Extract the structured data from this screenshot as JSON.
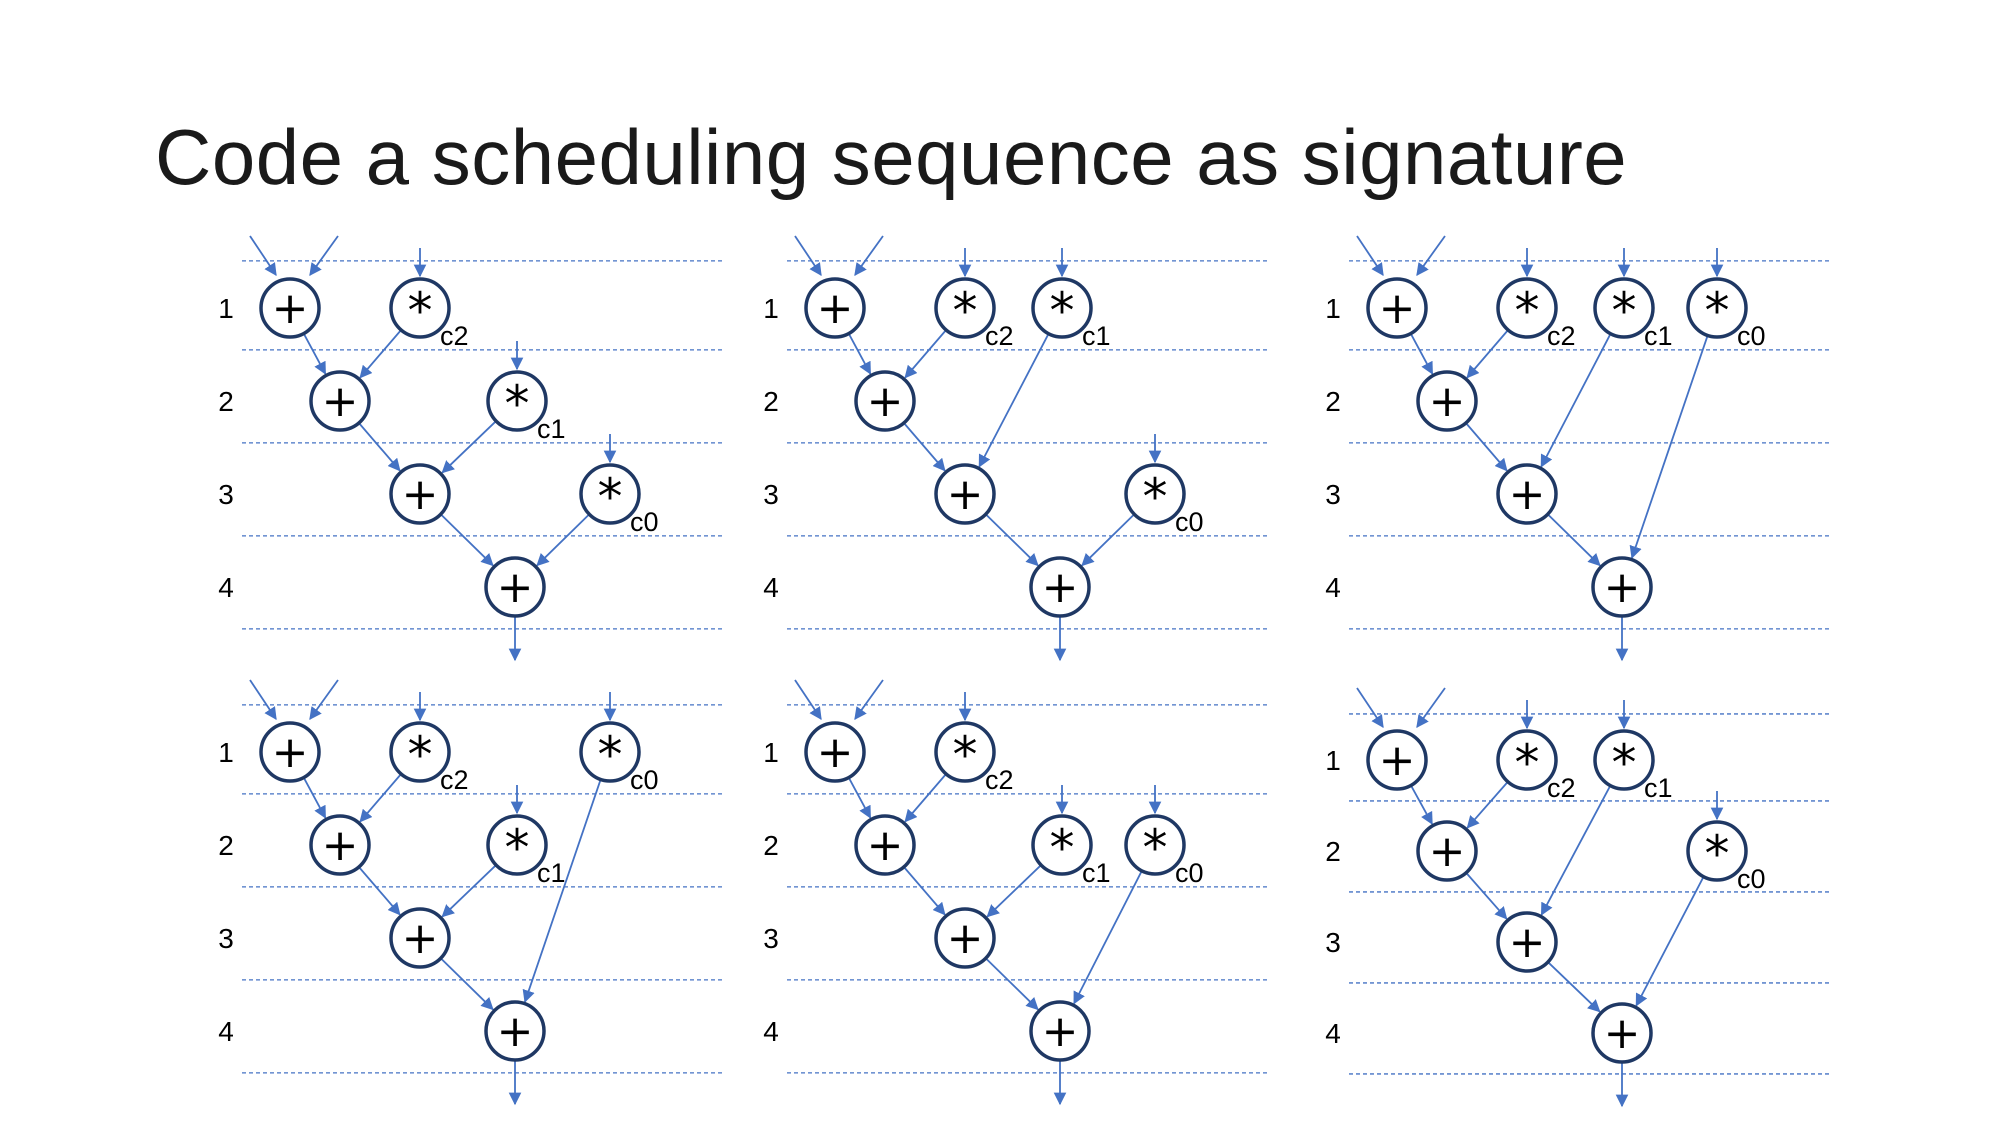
{
  "title": "Code a scheduling sequence as signature",
  "colors": {
    "edge": "#4472C4",
    "node_border": "#1F3864",
    "guide": "#4472C4"
  },
  "step_labels": [
    "1",
    "2",
    "3",
    "4"
  ],
  "operators": {
    "add": "+",
    "mult": "*"
  },
  "schedules": [
    {
      "id": "schedule-1",
      "nodes": [
        {
          "id": "a1",
          "op": "add",
          "step": 1,
          "ext_inputs": 2
        },
        {
          "id": "m2",
          "op": "mult",
          "step": 1,
          "coef": "c2",
          "ext_inputs": 1
        },
        {
          "id": "a2",
          "op": "add",
          "step": 2
        },
        {
          "id": "m1",
          "op": "mult",
          "step": 2,
          "coef": "c1",
          "ext_inputs": 1
        },
        {
          "id": "a3",
          "op": "add",
          "step": 3
        },
        {
          "id": "m0",
          "op": "mult",
          "step": 3,
          "coef": "c0",
          "ext_inputs": 1
        },
        {
          "id": "a4",
          "op": "add",
          "step": 4,
          "output": true
        }
      ],
      "edges": [
        [
          "a1",
          "a2"
        ],
        [
          "m2",
          "a2"
        ],
        [
          "a2",
          "a3"
        ],
        [
          "m1",
          "a3"
        ],
        [
          "a3",
          "a4"
        ],
        [
          "m0",
          "a4"
        ]
      ]
    },
    {
      "id": "schedule-2",
      "nodes": [
        {
          "id": "a1",
          "op": "add",
          "step": 1,
          "ext_inputs": 2
        },
        {
          "id": "m2",
          "op": "mult",
          "step": 1,
          "coef": "c2",
          "ext_inputs": 1
        },
        {
          "id": "m1",
          "op": "mult",
          "step": 1,
          "coef": "c1",
          "ext_inputs": 1
        },
        {
          "id": "a2",
          "op": "add",
          "step": 2
        },
        {
          "id": "a3",
          "op": "add",
          "step": 3
        },
        {
          "id": "m0",
          "op": "mult",
          "step": 3,
          "coef": "c0",
          "ext_inputs": 1
        },
        {
          "id": "a4",
          "op": "add",
          "step": 4,
          "output": true
        }
      ],
      "edges": [
        [
          "a1",
          "a2"
        ],
        [
          "m2",
          "a2"
        ],
        [
          "a2",
          "a3"
        ],
        [
          "m1",
          "a3"
        ],
        [
          "a3",
          "a4"
        ],
        [
          "m0",
          "a4"
        ]
      ]
    },
    {
      "id": "schedule-3",
      "nodes": [
        {
          "id": "a1",
          "op": "add",
          "step": 1,
          "ext_inputs": 2
        },
        {
          "id": "m2",
          "op": "mult",
          "step": 1,
          "coef": "c2",
          "ext_inputs": 1
        },
        {
          "id": "m1",
          "op": "mult",
          "step": 1,
          "coef": "c1",
          "ext_inputs": 1
        },
        {
          "id": "m0",
          "op": "mult",
          "step": 1,
          "coef": "c0",
          "ext_inputs": 1
        },
        {
          "id": "a2",
          "op": "add",
          "step": 2
        },
        {
          "id": "a3",
          "op": "add",
          "step": 3
        },
        {
          "id": "a4",
          "op": "add",
          "step": 4,
          "output": true
        }
      ],
      "edges": [
        [
          "a1",
          "a2"
        ],
        [
          "m2",
          "a2"
        ],
        [
          "a2",
          "a3"
        ],
        [
          "m1",
          "a3"
        ],
        [
          "a3",
          "a4"
        ],
        [
          "m0",
          "a4"
        ]
      ]
    },
    {
      "id": "schedule-4",
      "nodes": [
        {
          "id": "a1",
          "op": "add",
          "step": 1,
          "ext_inputs": 2
        },
        {
          "id": "m2",
          "op": "mult",
          "step": 1,
          "coef": "c2",
          "ext_inputs": 1
        },
        {
          "id": "m0",
          "op": "mult",
          "step": 1,
          "coef": "c0",
          "ext_inputs": 1
        },
        {
          "id": "a2",
          "op": "add",
          "step": 2
        },
        {
          "id": "m1",
          "op": "mult",
          "step": 2,
          "coef": "c1",
          "ext_inputs": 1
        },
        {
          "id": "a3",
          "op": "add",
          "step": 3
        },
        {
          "id": "a4",
          "op": "add",
          "step": 4,
          "output": true
        }
      ],
      "edges": [
        [
          "a1",
          "a2"
        ],
        [
          "m2",
          "a2"
        ],
        [
          "a2",
          "a3"
        ],
        [
          "m1",
          "a3"
        ],
        [
          "a3",
          "a4"
        ],
        [
          "m0",
          "a4"
        ]
      ]
    },
    {
      "id": "schedule-5",
      "nodes": [
        {
          "id": "a1",
          "op": "add",
          "step": 1,
          "ext_inputs": 2
        },
        {
          "id": "m2",
          "op": "mult",
          "step": 1,
          "coef": "c2",
          "ext_inputs": 1
        },
        {
          "id": "a2",
          "op": "add",
          "step": 2
        },
        {
          "id": "m1",
          "op": "mult",
          "step": 2,
          "coef": "c1",
          "ext_inputs": 1
        },
        {
          "id": "m0",
          "op": "mult",
          "step": 2,
          "coef": "c0",
          "ext_inputs": 1
        },
        {
          "id": "a3",
          "op": "add",
          "step": 3
        },
        {
          "id": "a4",
          "op": "add",
          "step": 4,
          "output": true
        }
      ],
      "edges": [
        [
          "a1",
          "a2"
        ],
        [
          "m2",
          "a2"
        ],
        [
          "a2",
          "a3"
        ],
        [
          "m1",
          "a3"
        ],
        [
          "a3",
          "a4"
        ],
        [
          "m0",
          "a4"
        ]
      ]
    },
    {
      "id": "schedule-6",
      "nodes": [
        {
          "id": "a1",
          "op": "add",
          "step": 1,
          "ext_inputs": 2
        },
        {
          "id": "m2",
          "op": "mult",
          "step": 1,
          "coef": "c2",
          "ext_inputs": 1
        },
        {
          "id": "m1",
          "op": "mult",
          "step": 1,
          "coef": "c1",
          "ext_inputs": 1
        },
        {
          "id": "a2",
          "op": "add",
          "step": 2
        },
        {
          "id": "m0",
          "op": "mult",
          "step": 2,
          "coef": "c0",
          "ext_inputs": 1
        },
        {
          "id": "a3",
          "op": "add",
          "step": 3
        },
        {
          "id": "a4",
          "op": "add",
          "step": 4,
          "output": true
        }
      ],
      "edges": [
        [
          "a1",
          "a2"
        ],
        [
          "m2",
          "a2"
        ],
        [
          "a2",
          "a3"
        ],
        [
          "m1",
          "a3"
        ],
        [
          "a3",
          "a4"
        ],
        [
          "m0",
          "a4"
        ]
      ]
    }
  ]
}
